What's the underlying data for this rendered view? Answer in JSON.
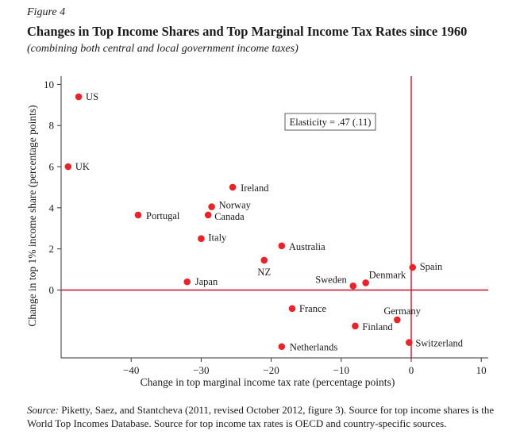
{
  "figure": {
    "label": "Figure 4",
    "title": "Changes in Top Income Shares and Top Marginal Income Tax Rates since 1960",
    "subtitle": "(combining both central and local government income taxes)",
    "source_label": "Source:",
    "source_text": " Piketty, Saez, and Stantcheva (2011, revised October 2012, figure 3). Source for top income shares is the World Top Incomes Database. Source for top income tax rates is OECD and country-specific sources."
  },
  "chart_data": {
    "type": "scatter",
    "xlabel": "Change in top marginal income tax rate (percentage points)",
    "ylabel": "Change in top 1% income share (percentage points)",
    "xlim": [
      -50,
      11
    ],
    "ylim": [
      -3.3,
      10.4
    ],
    "xticks": [
      -40,
      -30,
      -20,
      -10,
      0,
      10
    ],
    "xtick_labels": [
      "−40",
      "−30",
      "−20",
      "−10",
      "0",
      "10"
    ],
    "yticks": [
      0,
      2,
      4,
      6,
      8,
      10
    ],
    "ytick_labels": [
      "0",
      "2",
      "4",
      "6",
      "8",
      "10"
    ],
    "annotation": "Elasticity = .47 (.11)",
    "reference_lines": {
      "x": 0,
      "y": 0
    },
    "marker_color": "#e8242b",
    "reference_line_color": "#c8102e",
    "grid": false,
    "points": [
      {
        "label": "US",
        "x": -47.5,
        "y": 9.4
      },
      {
        "label": "UK",
        "x": -49,
        "y": 6.0
      },
      {
        "label": "Ireland",
        "x": -25.5,
        "y": 5.0
      },
      {
        "label": "Norway",
        "x": -28.5,
        "y": 4.05
      },
      {
        "label": "Canada",
        "x": -29,
        "y": 3.65
      },
      {
        "label": "Portugal",
        "x": -39,
        "y": 3.65
      },
      {
        "label": "Italy",
        "x": -30,
        "y": 2.5
      },
      {
        "label": "Australia",
        "x": -18.5,
        "y": 2.15
      },
      {
        "label": "NZ",
        "x": -21,
        "y": 1.45
      },
      {
        "label": "Japan",
        "x": -32,
        "y": 0.4
      },
      {
        "label": "Spain",
        "x": 0.2,
        "y": 1.1
      },
      {
        "label": "Denmark",
        "x": -6.5,
        "y": 0.35
      },
      {
        "label": "Sweden",
        "x": -8.3,
        "y": 0.2
      },
      {
        "label": "France",
        "x": -17,
        "y": -0.9
      },
      {
        "label": "Germany",
        "x": -2,
        "y": -1.45
      },
      {
        "label": "Finland",
        "x": -8,
        "y": -1.75
      },
      {
        "label": "Switzerland",
        "x": -0.3,
        "y": -2.55
      },
      {
        "label": "Netherlands",
        "x": -18.5,
        "y": -2.75
      }
    ]
  }
}
